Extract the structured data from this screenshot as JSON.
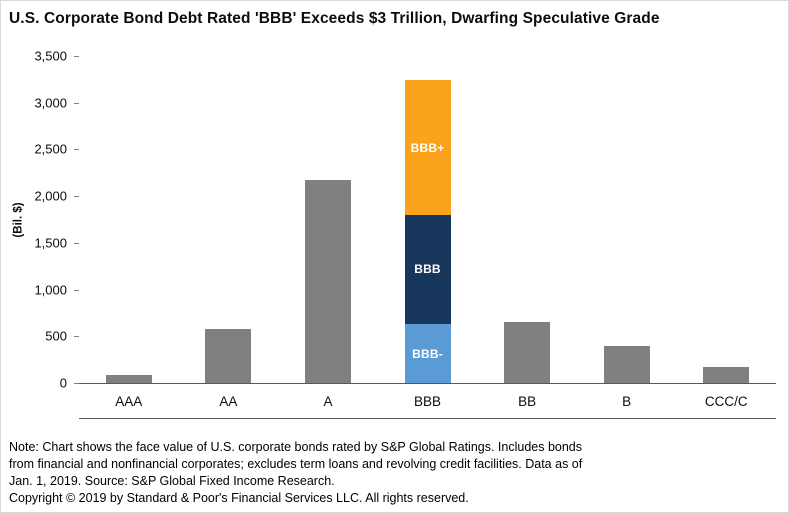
{
  "title": "U.S. Corporate Bond Debt Rated 'BBB' Exceeds $3 Trillion, Dwarfing Speculative Grade",
  "colors": {
    "bar": "#808080",
    "bbb_minus": "#5B9BD5",
    "bbb": "#16365C",
    "bbb_plus": "#FAA21B",
    "axis_line": "#595959"
  },
  "chart_data": {
    "type": "bar",
    "title": "U.S. Corporate Bond Debt Rated 'BBB' Exceeds $3 Trillion, Dwarfing Speculative Grade",
    "categories": [
      "AAA",
      "AA",
      "A",
      "BBB",
      "BB",
      "B",
      "CCC/C"
    ],
    "values": [
      90,
      580,
      2170,
      3240,
      650,
      400,
      170
    ],
    "stacked_category": "BBB",
    "stack": [
      {
        "label": "BBB-",
        "value": 630,
        "color": "#5B9BD5"
      },
      {
        "label": "BBB",
        "value": 1170,
        "color": "#16365C"
      },
      {
        "label": "BBB+",
        "value": 1440,
        "color": "#FAA21B"
      }
    ],
    "xlabel": "",
    "ylabel": "(Bil. $)",
    "ylim": [
      0,
      3500
    ],
    "yticks": [
      0,
      500,
      1000,
      1500,
      2000,
      2500,
      3000,
      3500
    ],
    "grid": false,
    "legend": "none (segment labels inside stacked bar)"
  },
  "note_lines": [
    "Note: Chart shows the face value of U.S. corporate bonds rated by S&P Global Ratings. Includes bonds",
    "from financial and nonfinancial corporates; excludes term loans and revolving credit facilities. Data as of",
    "Jan. 1, 2019. Source: S&P Global Fixed Income Research."
  ],
  "copyright": "Copyright © 2019 by Standard & Poor's Financial Services LLC. All rights reserved."
}
